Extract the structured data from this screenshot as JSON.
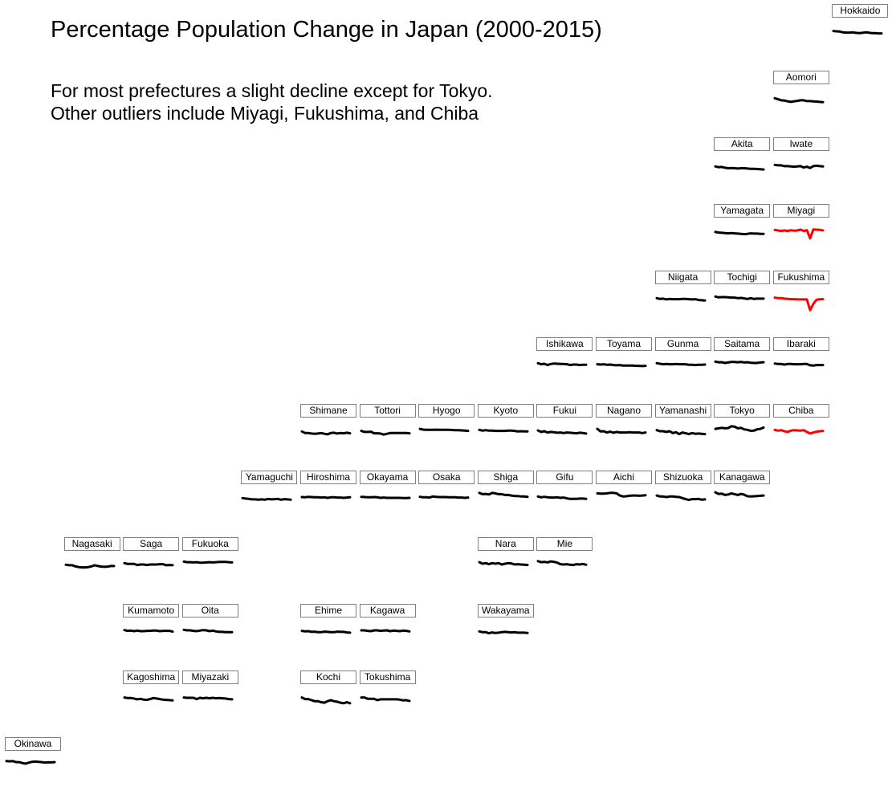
{
  "title": "Percentage Population Change in Japan (2000-2015)",
  "subtitle": [
    "For most prefectures a slight decline except for Tokyo.",
    "Other outliers include Miyagi, Fukushima, and Chiba"
  ],
  "colors": {
    "normal": "#000000",
    "highlight": "#ff0000"
  },
  "chart_data": {
    "type": "line",
    "layout": "tile-grid-small-multiples",
    "x": [
      2000,
      2001,
      2002,
      2003,
      2004,
      2005,
      2006,
      2007,
      2008,
      2009,
      2010,
      2011,
      2012,
      2013,
      2014,
      2015
    ],
    "series": [
      {
        "name": "Hokkaido",
        "row": 0,
        "col": 14,
        "highlight": false,
        "values": [
          -0.1,
          -0.15,
          -0.2,
          -0.35,
          -0.4,
          -0.4,
          -0.35,
          -0.45,
          -0.5,
          -0.45,
          -0.35,
          -0.4,
          -0.5,
          -0.5,
          -0.55,
          -0.55
        ]
      },
      {
        "name": "Aomori",
        "row": 1,
        "col": 13,
        "highlight": false,
        "values": [
          -0.2,
          -0.4,
          -0.6,
          -0.65,
          -0.8,
          -0.9,
          -0.8,
          -0.7,
          -0.6,
          -0.6,
          -0.75,
          -0.75,
          -0.8,
          -0.85,
          -0.9,
          -0.95
        ]
      },
      {
        "name": "Akita",
        "row": 2,
        "col": 12,
        "highlight": false,
        "values": [
          -0.5,
          -0.65,
          -0.6,
          -0.75,
          -0.85,
          -0.8,
          -0.85,
          -0.9,
          -0.85,
          -0.85,
          -0.9,
          -0.95,
          -0.95,
          -1.0,
          -1.05,
          -1.1
        ]
      },
      {
        "name": "Iwate",
        "row": 2,
        "col": 13,
        "highlight": false,
        "values": [
          -0.2,
          -0.3,
          -0.3,
          -0.45,
          -0.45,
          -0.5,
          -0.55,
          -0.5,
          -0.45,
          -0.7,
          -0.55,
          -0.8,
          -0.45,
          -0.35,
          -0.45,
          -0.5
        ]
      },
      {
        "name": "Yamagata",
        "row": 3,
        "col": 12,
        "highlight": false,
        "values": [
          -0.3,
          -0.4,
          -0.45,
          -0.5,
          -0.55,
          -0.5,
          -0.55,
          -0.6,
          -0.65,
          -0.7,
          -0.65,
          -0.55,
          -0.6,
          -0.6,
          -0.65,
          -0.65
        ]
      },
      {
        "name": "Miyagi",
        "row": 3,
        "col": 13,
        "highlight": true,
        "values": [
          0.1,
          0.0,
          -0.1,
          0.0,
          -0.1,
          0.05,
          -0.05,
          0.0,
          0.15,
          -0.1,
          0.05,
          -1.5,
          0.2,
          0.15,
          0.1,
          0.0
        ]
      },
      {
        "name": "Niigata",
        "row": 4,
        "col": 11,
        "highlight": false,
        "values": [
          -0.2,
          -0.35,
          -0.3,
          -0.45,
          -0.35,
          -0.4,
          -0.4,
          -0.4,
          -0.35,
          -0.35,
          -0.4,
          -0.45,
          -0.4,
          -0.55,
          -0.6,
          -0.65
        ]
      },
      {
        "name": "Tochigi",
        "row": 4,
        "col": 12,
        "highlight": false,
        "values": [
          0.1,
          -0.05,
          0.0,
          0.0,
          -0.05,
          -0.1,
          -0.1,
          -0.2,
          -0.15,
          -0.25,
          -0.35,
          -0.2,
          -0.35,
          -0.3,
          -0.3,
          -0.3
        ]
      },
      {
        "name": "Fukushima",
        "row": 4,
        "col": 13,
        "highlight": true,
        "values": [
          -0.1,
          -0.2,
          -0.2,
          -0.3,
          -0.35,
          -0.4,
          -0.4,
          -0.45,
          -0.45,
          -0.45,
          -0.45,
          -2.5,
          -1.3,
          -0.5,
          -0.4,
          -0.4
        ]
      },
      {
        "name": "Ishikawa",
        "row": 5,
        "col": 9,
        "highlight": false,
        "values": [
          0.1,
          -0.1,
          0.0,
          -0.25,
          -0.05,
          0.05,
          0.0,
          -0.05,
          -0.05,
          -0.1,
          -0.25,
          -0.15,
          -0.15,
          -0.25,
          -0.2,
          -0.2
        ]
      },
      {
        "name": "Toyama",
        "row": 5,
        "col": 10,
        "highlight": false,
        "values": [
          -0.1,
          -0.15,
          -0.1,
          -0.2,
          -0.15,
          -0.25,
          -0.3,
          -0.25,
          -0.35,
          -0.35,
          -0.35,
          -0.35,
          -0.4,
          -0.4,
          -0.45,
          -0.4
        ]
      },
      {
        "name": "Gunma",
        "row": 5,
        "col": 11,
        "highlight": false,
        "values": [
          0.1,
          0.0,
          -0.1,
          -0.05,
          -0.1,
          -0.1,
          -0.05,
          -0.1,
          -0.1,
          -0.1,
          -0.2,
          -0.2,
          -0.25,
          -0.2,
          -0.2,
          -0.15
        ]
      },
      {
        "name": "Saitama",
        "row": 5,
        "col": 12,
        "highlight": false,
        "values": [
          0.4,
          0.3,
          0.3,
          0.15,
          0.25,
          0.35,
          0.35,
          0.3,
          0.35,
          0.25,
          0.3,
          0.2,
          0.15,
          0.15,
          0.25,
          0.3
        ]
      },
      {
        "name": "Ibaraki",
        "row": 5,
        "col": 13,
        "highlight": false,
        "values": [
          0.05,
          -0.05,
          -0.05,
          -0.15,
          -0.05,
          -0.05,
          -0.1,
          -0.1,
          -0.1,
          -0.05,
          -0.05,
          -0.3,
          -0.35,
          -0.25,
          -0.25,
          -0.25
        ]
      },
      {
        "name": "Shimane",
        "row": 6,
        "col": 5,
        "highlight": false,
        "values": [
          -0.2,
          -0.5,
          -0.5,
          -0.6,
          -0.65,
          -0.6,
          -0.5,
          -0.65,
          -0.75,
          -0.5,
          -0.45,
          -0.6,
          -0.5,
          -0.55,
          -0.45,
          -0.55
        ]
      },
      {
        "name": "Tottori",
        "row": 6,
        "col": 6,
        "highlight": false,
        "values": [
          -0.1,
          -0.3,
          -0.3,
          -0.25,
          -0.55,
          -0.55,
          -0.6,
          -0.8,
          -0.65,
          -0.5,
          -0.5,
          -0.5,
          -0.5,
          -0.5,
          -0.5,
          -0.55
        ]
      },
      {
        "name": "Hyogo",
        "row": 6,
        "col": 7,
        "highlight": false,
        "values": [
          0.3,
          0.15,
          0.1,
          0.1,
          0.12,
          0.14,
          0.13,
          0.12,
          0.1,
          0.1,
          0.08,
          0.05,
          0.05,
          0.0,
          -0.05,
          -0.1
        ]
      },
      {
        "name": "Kyoto",
        "row": 6,
        "col": 8,
        "highlight": false,
        "values": [
          0.1,
          -0.05,
          0.05,
          -0.05,
          -0.05,
          -0.1,
          -0.1,
          -0.1,
          -0.1,
          -0.05,
          -0.05,
          -0.1,
          -0.2,
          -0.15,
          -0.2,
          -0.2
        ]
      },
      {
        "name": "Fukui",
        "row": 6,
        "col": 9,
        "highlight": false,
        "values": [
          0.0,
          -0.3,
          -0.15,
          -0.4,
          -0.3,
          -0.35,
          -0.45,
          -0.4,
          -0.5,
          -0.4,
          -0.45,
          -0.5,
          -0.55,
          -0.45,
          -0.5,
          -0.6
        ]
      },
      {
        "name": "Nagano",
        "row": 6,
        "col": 10,
        "highlight": false,
        "values": [
          0.3,
          -0.2,
          -0.15,
          -0.4,
          -0.25,
          -0.45,
          -0.3,
          -0.4,
          -0.4,
          -0.4,
          -0.35,
          -0.4,
          -0.4,
          -0.4,
          -0.5,
          -0.4
        ]
      },
      {
        "name": "Yamanashi",
        "row": 6,
        "col": 11,
        "highlight": false,
        "values": [
          0.05,
          -0.15,
          -0.15,
          -0.3,
          -0.15,
          -0.5,
          -0.35,
          -0.7,
          -0.4,
          -0.55,
          -0.7,
          -0.5,
          -0.65,
          -0.6,
          -0.65,
          -0.7
        ]
      },
      {
        "name": "Tokyo",
        "row": 6,
        "col": 12,
        "highlight": false,
        "values": [
          0.3,
          0.4,
          0.5,
          0.4,
          0.45,
          0.8,
          0.7,
          0.4,
          0.5,
          0.2,
          0.1,
          -0.1,
          -0.05,
          0.2,
          0.3,
          0.55
        ]
      },
      {
        "name": "Chiba",
        "row": 6,
        "col": 13,
        "highlight": true,
        "values": [
          0.1,
          -0.05,
          0.05,
          -0.15,
          -0.3,
          -0.05,
          0.05,
          0.0,
          -0.05,
          0.05,
          -0.3,
          -0.6,
          -0.4,
          -0.25,
          -0.15,
          -0.1
        ]
      },
      {
        "name": "Yamaguchi",
        "row": 7,
        "col": 4,
        "highlight": false,
        "values": [
          -0.2,
          -0.3,
          -0.35,
          -0.45,
          -0.45,
          -0.5,
          -0.45,
          -0.5,
          -0.35,
          -0.45,
          -0.4,
          -0.35,
          -0.5,
          -0.4,
          -0.45,
          -0.5
        ]
      },
      {
        "name": "Hiroshima",
        "row": 7,
        "col": 5,
        "highlight": false,
        "values": [
          0.0,
          -0.05,
          0.05,
          0.0,
          -0.05,
          -0.05,
          -0.1,
          -0.05,
          -0.15,
          -0.05,
          -0.05,
          -0.1,
          -0.1,
          -0.15,
          -0.1,
          -0.05
        ]
      },
      {
        "name": "Okayama",
        "row": 7,
        "col": 6,
        "highlight": false,
        "values": [
          0.05,
          0.0,
          -0.05,
          -0.05,
          0.0,
          -0.05,
          -0.15,
          -0.1,
          -0.15,
          -0.15,
          -0.15,
          -0.15,
          -0.15,
          -0.2,
          -0.2,
          -0.15
        ]
      },
      {
        "name": "Osaka",
        "row": 7,
        "col": 7,
        "highlight": false,
        "values": [
          0.05,
          -0.05,
          -0.05,
          -0.1,
          0.1,
          0.05,
          0.0,
          0.0,
          0.0,
          -0.05,
          -0.05,
          -0.05,
          -0.1,
          -0.1,
          -0.15,
          -0.1
        ]
      },
      {
        "name": "Shiga",
        "row": 7,
        "col": 8,
        "highlight": false,
        "values": [
          0.8,
          0.55,
          0.6,
          0.5,
          0.8,
          0.7,
          0.55,
          0.55,
          0.4,
          0.4,
          0.3,
          0.2,
          0.2,
          0.1,
          0.1,
          0.05
        ]
      },
      {
        "name": "Gifu",
        "row": 7,
        "col": 9,
        "highlight": false,
        "values": [
          0.1,
          -0.05,
          0.05,
          -0.05,
          -0.1,
          -0.1,
          -0.05,
          -0.15,
          -0.1,
          -0.25,
          -0.35,
          -0.35,
          -0.35,
          -0.3,
          -0.3,
          -0.35
        ]
      },
      {
        "name": "Aichi",
        "row": 7,
        "col": 10,
        "highlight": false,
        "values": [
          0.7,
          0.65,
          0.65,
          0.7,
          0.8,
          0.8,
          0.7,
          0.3,
          0.1,
          0.15,
          0.25,
          0.3,
          0.3,
          0.25,
          0.3,
          0.35
        ]
      },
      {
        "name": "Shizuoka",
        "row": 7,
        "col": 11,
        "highlight": false,
        "values": [
          0.3,
          0.1,
          0.1,
          0.0,
          0.1,
          0.1,
          0.05,
          0.0,
          -0.2,
          -0.4,
          -0.55,
          -0.4,
          -0.4,
          -0.35,
          -0.5,
          -0.45
        ]
      },
      {
        "name": "Kanagawa",
        "row": 7,
        "col": 12,
        "highlight": false,
        "values": [
          0.9,
          0.6,
          0.65,
          0.4,
          0.5,
          0.7,
          0.55,
          0.4,
          0.6,
          0.45,
          0.15,
          0.1,
          0.15,
          0.2,
          0.25,
          0.3
        ]
      },
      {
        "name": "Nagasaki",
        "row": 8,
        "col": 1,
        "highlight": false,
        "values": [
          -0.2,
          -0.3,
          -0.3,
          -0.5,
          -0.65,
          -0.7,
          -0.7,
          -0.65,
          -0.5,
          -0.3,
          -0.45,
          -0.55,
          -0.6,
          -0.55,
          -0.45,
          -0.45
        ]
      },
      {
        "name": "Saga",
        "row": 8,
        "col": 2,
        "highlight": false,
        "values": [
          0.1,
          -0.05,
          -0.05,
          -0.05,
          -0.25,
          -0.15,
          -0.15,
          -0.25,
          -0.15,
          -0.15,
          -0.15,
          -0.1,
          -0.1,
          -0.3,
          -0.25,
          -0.3
        ]
      },
      {
        "name": "Fukuoka",
        "row": 8,
        "col": 3,
        "highlight": false,
        "values": [
          0.4,
          0.3,
          0.3,
          0.25,
          0.3,
          0.2,
          0.2,
          0.25,
          0.3,
          0.25,
          0.3,
          0.35,
          0.35,
          0.35,
          0.3,
          0.25
        ]
      },
      {
        "name": "Nara",
        "row": 8,
        "col": 8,
        "highlight": false,
        "values": [
          0.3,
          0.0,
          0.1,
          -0.1,
          0.1,
          0.0,
          0.1,
          -0.15,
          0.0,
          0.1,
          0.05,
          -0.15,
          -0.1,
          -0.15,
          -0.2,
          -0.25
        ]
      },
      {
        "name": "Mie",
        "row": 8,
        "col": 9,
        "highlight": false,
        "values": [
          0.5,
          0.3,
          0.35,
          0.25,
          0.45,
          0.35,
          0.2,
          -0.1,
          -0.15,
          -0.1,
          -0.2,
          -0.25,
          -0.1,
          -0.15,
          -0.05,
          -0.2
        ]
      },
      {
        "name": "Kumamoto",
        "row": 9,
        "col": 2,
        "highlight": false,
        "values": [
          0.05,
          -0.1,
          -0.05,
          -0.15,
          -0.05,
          -0.15,
          -0.15,
          -0.1,
          -0.1,
          -0.05,
          -0.05,
          -0.15,
          -0.1,
          -0.1,
          -0.1,
          -0.25
        ]
      },
      {
        "name": "Oita",
        "row": 9,
        "col": 3,
        "highlight": false,
        "values": [
          0.1,
          0.0,
          0.0,
          -0.1,
          -0.15,
          -0.05,
          0.05,
          0.0,
          -0.15,
          -0.05,
          -0.2,
          -0.3,
          -0.3,
          -0.35,
          -0.35,
          -0.35
        ]
      },
      {
        "name": "Ehime",
        "row": 9,
        "col": 5,
        "highlight": false,
        "values": [
          -0.1,
          -0.2,
          -0.15,
          -0.3,
          -0.25,
          -0.35,
          -0.35,
          -0.25,
          -0.3,
          -0.35,
          -0.35,
          -0.25,
          -0.3,
          -0.3,
          -0.4,
          -0.45
        ]
      },
      {
        "name": "Kagawa",
        "row": 9,
        "col": 6,
        "highlight": false,
        "values": [
          0.0,
          0.0,
          -0.1,
          -0.15,
          0.0,
          0.0,
          -0.1,
          -0.05,
          0.0,
          -0.15,
          -0.05,
          -0.1,
          -0.15,
          -0.05,
          -0.1,
          -0.2
        ]
      },
      {
        "name": "Wakayama",
        "row": 9,
        "col": 8,
        "highlight": false,
        "values": [
          -0.2,
          -0.35,
          -0.35,
          -0.55,
          -0.4,
          -0.5,
          -0.45,
          -0.35,
          -0.3,
          -0.35,
          -0.4,
          -0.35,
          -0.45,
          -0.45,
          -0.45,
          -0.5
        ]
      },
      {
        "name": "Kagoshima",
        "row": 10,
        "col": 2,
        "highlight": false,
        "values": [
          -0.1,
          -0.2,
          -0.2,
          -0.3,
          -0.45,
          -0.35,
          -0.5,
          -0.55,
          -0.4,
          -0.2,
          -0.3,
          -0.4,
          -0.5,
          -0.55,
          -0.6,
          -0.65
        ]
      },
      {
        "name": "Miyazaki",
        "row": 10,
        "col": 3,
        "highlight": false,
        "values": [
          -0.1,
          -0.15,
          -0.15,
          -0.15,
          -0.4,
          -0.15,
          -0.25,
          -0.15,
          -0.25,
          -0.15,
          -0.25,
          -0.2,
          -0.25,
          -0.3,
          -0.4,
          -0.45
        ]
      },
      {
        "name": "Kochi",
        "row": 10,
        "col": 5,
        "highlight": false,
        "values": [
          -0.1,
          -0.4,
          -0.4,
          -0.6,
          -0.8,
          -0.8,
          -1.0,
          -1.1,
          -0.8,
          -0.6,
          -0.8,
          -0.9,
          -1.1,
          -1.2,
          -1.0,
          -1.2
        ]
      },
      {
        "name": "Tokushima",
        "row": 10,
        "col": 6,
        "highlight": false,
        "values": [
          -0.1,
          -0.1,
          -0.35,
          -0.35,
          -0.35,
          -0.6,
          -0.45,
          -0.45,
          -0.45,
          -0.45,
          -0.45,
          -0.45,
          -0.5,
          -0.65,
          -0.6,
          -0.75
        ]
      },
      {
        "name": "Okinawa",
        "row": 11,
        "col": 0,
        "highlight": false,
        "values": [
          0.5,
          0.45,
          0.5,
          0.3,
          0.3,
          0.1,
          0.0,
          0.2,
          0.35,
          0.4,
          0.35,
          0.3,
          0.2,
          0.25,
          0.25,
          0.3
        ]
      }
    ]
  }
}
